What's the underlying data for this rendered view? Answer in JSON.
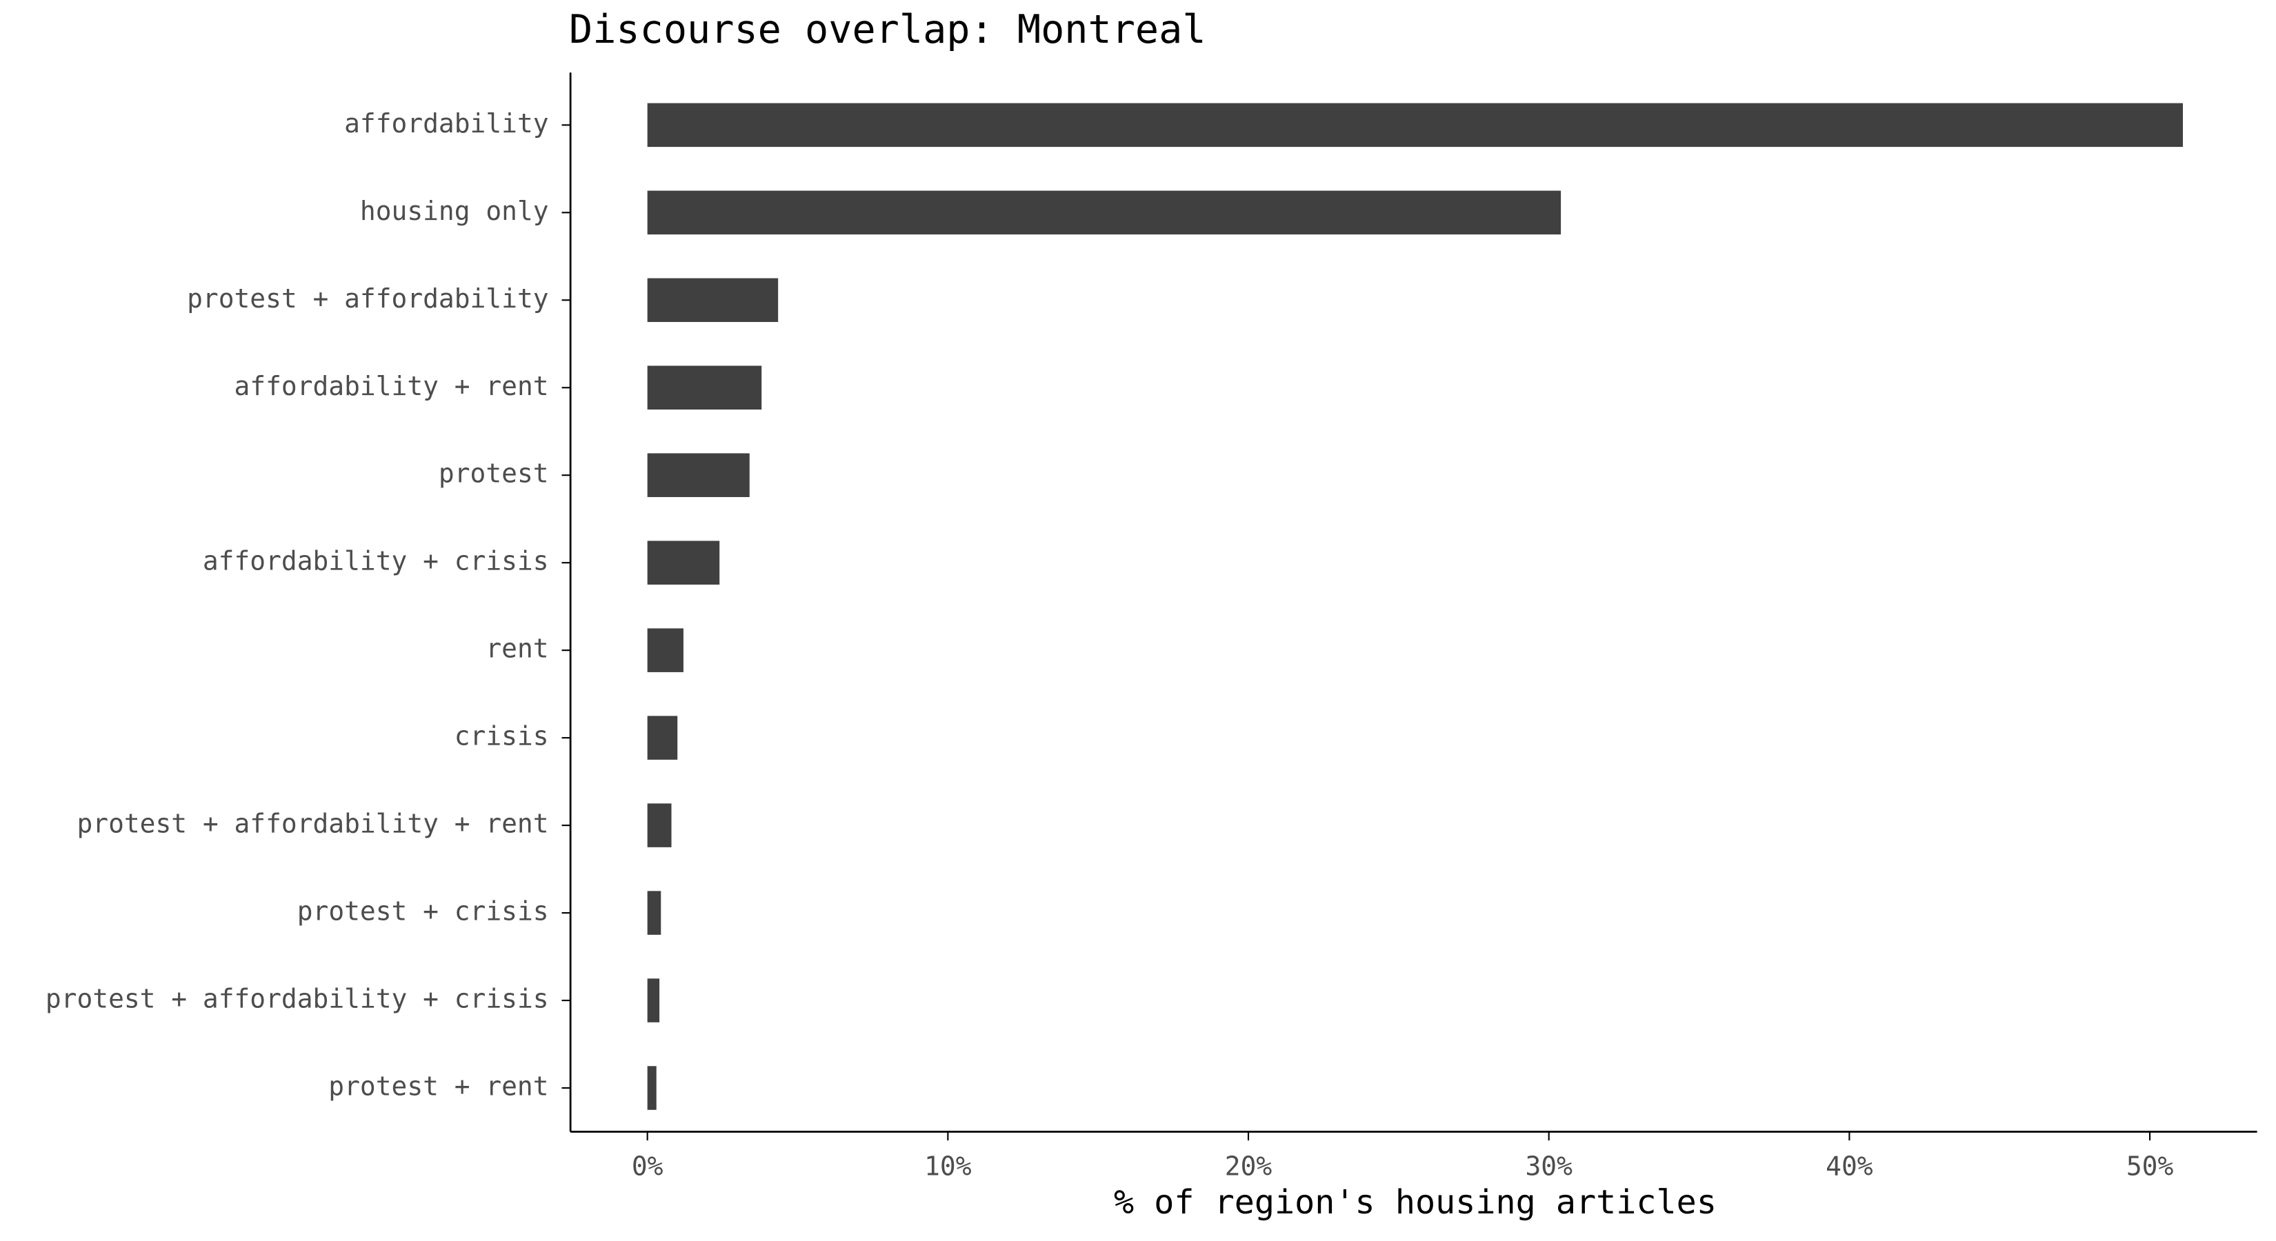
{
  "chart_data": {
    "type": "barh",
    "title": "Discourse overlap:  Montreal",
    "xlabel": "% of region's housing articles",
    "categories": [
      "affordability",
      "housing only",
      "protest + affordability",
      "affordability + rent",
      "protest",
      "affordability + crisis",
      "rent",
      "crisis",
      "protest + affordability + rent",
      "protest + crisis",
      "protest + affordability + crisis",
      "protest + rent"
    ],
    "values": [
      51.1,
      30.4,
      4.35,
      3.8,
      3.4,
      2.4,
      1.2,
      1.0,
      0.8,
      0.45,
      0.4,
      0.3
    ],
    "color": "#404040",
    "xlim": [
      -2.56,
      53.57
    ],
    "xticks": [
      {
        "value": 0,
        "label": "0%"
      },
      {
        "value": 10,
        "label": "10%"
      },
      {
        "value": 20,
        "label": "20%"
      },
      {
        "value": 30,
        "label": "30%"
      },
      {
        "value": 40,
        "label": "40%"
      },
      {
        "value": 50,
        "label": "50%"
      }
    ],
    "grid": false
  }
}
